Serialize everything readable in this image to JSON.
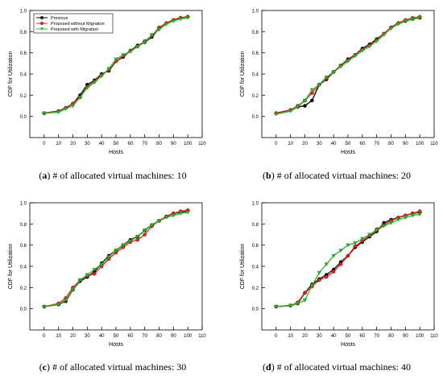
{
  "chart_data": [
    {
      "type": "scatter",
      "panel": "a",
      "caption_letter": "a",
      "caption_text": " # of allocated virtual machines: 10",
      "xlabel": "Hosts",
      "ylabel": "CDF for Utilization",
      "xlim": [
        -10,
        110
      ],
      "ylim": [
        -0.2,
        1.0
      ],
      "xticks": [
        0,
        10,
        20,
        30,
        40,
        50,
        60,
        70,
        80,
        90,
        100,
        110
      ],
      "yticks": [
        0.0,
        0.2,
        0.4,
        0.6,
        0.8,
        1.0
      ],
      "legend": {
        "placement": "top-left",
        "entries": [
          "Previous",
          "Proposed without Migration",
          "Proposed with Migration"
        ]
      },
      "series": [
        {
          "name": "Previous",
          "x": [
            0,
            10,
            15,
            20,
            25,
            30,
            35,
            40,
            45,
            50,
            55,
            60,
            65,
            70,
            75,
            80,
            85,
            90,
            95,
            100
          ],
          "values": [
            0.03,
            0.05,
            0.08,
            0.12,
            0.2,
            0.3,
            0.34,
            0.4,
            0.43,
            0.52,
            0.56,
            0.62,
            0.67,
            0.7,
            0.75,
            0.83,
            0.88,
            0.91,
            0.93,
            0.94
          ]
        },
        {
          "name": "Proposed without Migration",
          "x": [
            0,
            10,
            15,
            20,
            25,
            30,
            35,
            40,
            45,
            50,
            55,
            60,
            65,
            70,
            75,
            80,
            85,
            90,
            95,
            100
          ],
          "values": [
            0.03,
            0.05,
            0.08,
            0.12,
            0.18,
            0.28,
            0.33,
            0.39,
            0.44,
            0.52,
            0.57,
            0.62,
            0.66,
            0.71,
            0.76,
            0.84,
            0.88,
            0.91,
            0.93,
            0.94
          ]
        },
        {
          "name": "Proposed with Migration",
          "x": [
            0,
            10,
            15,
            20,
            25,
            30,
            35,
            40,
            45,
            50,
            55,
            60,
            65,
            70,
            75,
            80,
            85,
            90,
            95,
            100
          ],
          "values": [
            0.03,
            0.04,
            0.07,
            0.1,
            0.18,
            0.27,
            0.32,
            0.38,
            0.45,
            0.54,
            0.58,
            0.61,
            0.66,
            0.7,
            0.77,
            0.82,
            0.87,
            0.9,
            0.92,
            0.93
          ]
        }
      ]
    },
    {
      "type": "scatter",
      "panel": "b",
      "caption_letter": "b",
      "caption_text": " # of allocated virtual machines: 20",
      "xlabel": "Hosts",
      "ylabel": "CDF for Utilization",
      "xlim": [
        -10,
        110
      ],
      "ylim": [
        -0.2,
        1.0
      ],
      "xticks": [
        0,
        10,
        20,
        30,
        40,
        50,
        60,
        70,
        80,
        90,
        100,
        110
      ],
      "yticks": [
        0.0,
        0.2,
        0.4,
        0.6,
        0.8,
        1.0
      ],
      "series": [
        {
          "name": "Previous",
          "x": [
            0,
            10,
            15,
            20,
            25,
            30,
            35,
            40,
            45,
            50,
            55,
            60,
            65,
            70,
            75,
            80,
            85,
            90,
            95,
            100
          ],
          "values": [
            0.03,
            0.06,
            0.09,
            0.1,
            0.15,
            0.3,
            0.35,
            0.42,
            0.48,
            0.54,
            0.58,
            0.64,
            0.68,
            0.73,
            0.78,
            0.84,
            0.88,
            0.9,
            0.92,
            0.93
          ]
        },
        {
          "name": "Proposed without Migration",
          "x": [
            0,
            10,
            15,
            20,
            25,
            30,
            35,
            40,
            45,
            50,
            55,
            60,
            65,
            70,
            75,
            80,
            85,
            90,
            95,
            100
          ],
          "values": [
            0.03,
            0.06,
            0.1,
            0.15,
            0.22,
            0.3,
            0.36,
            0.42,
            0.48,
            0.53,
            0.58,
            0.63,
            0.67,
            0.72,
            0.78,
            0.84,
            0.88,
            0.91,
            0.93,
            0.94
          ]
        },
        {
          "name": "Proposed with Migration",
          "x": [
            0,
            10,
            15,
            20,
            25,
            30,
            35,
            40,
            45,
            50,
            55,
            60,
            65,
            70,
            75,
            80,
            85,
            90,
            95,
            100
          ],
          "values": [
            0.02,
            0.05,
            0.09,
            0.15,
            0.25,
            0.3,
            0.37,
            0.42,
            0.47,
            0.52,
            0.57,
            0.62,
            0.66,
            0.71,
            0.77,
            0.83,
            0.87,
            0.9,
            0.92,
            0.93
          ]
        }
      ]
    },
    {
      "type": "scatter",
      "panel": "c",
      "caption_letter": "c",
      "caption_text": " # of allocated virtual machines: 30",
      "xlabel": "Hosts",
      "ylabel": "CDF for Utilization",
      "xlim": [
        -10,
        110
      ],
      "ylim": [
        -0.2,
        1.0
      ],
      "xticks": [
        0,
        10,
        20,
        30,
        40,
        50,
        60,
        70,
        80,
        90,
        100,
        110
      ],
      "yticks": [
        0.0,
        0.2,
        0.4,
        0.6,
        0.8,
        1.0
      ],
      "series": [
        {
          "name": "Previous",
          "x": [
            0,
            10,
            15,
            20,
            25,
            30,
            35,
            40,
            45,
            50,
            55,
            60,
            65,
            70,
            75,
            80,
            85,
            90,
            95,
            100
          ],
          "values": [
            0.02,
            0.04,
            0.07,
            0.18,
            0.26,
            0.3,
            0.35,
            0.43,
            0.5,
            0.55,
            0.6,
            0.65,
            0.68,
            0.74,
            0.79,
            0.83,
            0.87,
            0.9,
            0.91,
            0.92
          ]
        },
        {
          "name": "Proposed without Migration",
          "x": [
            0,
            10,
            15,
            20,
            25,
            30,
            35,
            40,
            45,
            50,
            55,
            60,
            65,
            70,
            75,
            80,
            85,
            90,
            95,
            100
          ],
          "values": [
            0.02,
            0.05,
            0.1,
            0.2,
            0.27,
            0.31,
            0.33,
            0.4,
            0.47,
            0.53,
            0.58,
            0.63,
            0.65,
            0.7,
            0.78,
            0.83,
            0.87,
            0.9,
            0.92,
            0.93
          ]
        },
        {
          "name": "Proposed with Migration",
          "x": [
            0,
            10,
            15,
            20,
            25,
            30,
            35,
            40,
            45,
            50,
            55,
            60,
            65,
            70,
            75,
            80,
            85,
            90,
            95,
            100
          ],
          "values": [
            0.02,
            0.04,
            0.08,
            0.18,
            0.27,
            0.32,
            0.37,
            0.42,
            0.49,
            0.55,
            0.6,
            0.64,
            0.68,
            0.74,
            0.79,
            0.83,
            0.86,
            0.88,
            0.9,
            0.91
          ]
        }
      ]
    },
    {
      "type": "scatter",
      "panel": "d",
      "caption_letter": "d",
      "caption_text": " # of allocated virtual machines: 40",
      "xlabel": "Hosts",
      "ylabel": "CDF for Utilization",
      "xlim": [
        -10,
        110
      ],
      "ylim": [
        -0.2,
        1.0
      ],
      "xticks": [
        0,
        10,
        20,
        30,
        40,
        50,
        60,
        70,
        80,
        90,
        100,
        110
      ],
      "yticks": [
        0.0,
        0.2,
        0.4,
        0.6,
        0.8,
        1.0
      ],
      "series": [
        {
          "name": "Previous",
          "x": [
            0,
            10,
            15,
            20,
            25,
            30,
            35,
            40,
            45,
            50,
            55,
            60,
            65,
            70,
            75,
            80,
            85,
            90,
            95,
            100
          ],
          "values": [
            0.02,
            0.03,
            0.05,
            0.15,
            0.23,
            0.28,
            0.32,
            0.37,
            0.44,
            0.5,
            0.58,
            0.63,
            0.68,
            0.73,
            0.81,
            0.84,
            0.86,
            0.88,
            0.9,
            0.91
          ]
        },
        {
          "name": "Proposed without Migration",
          "x": [
            0,
            10,
            15,
            20,
            25,
            30,
            35,
            40,
            45,
            50,
            55,
            60,
            65,
            70,
            75,
            80,
            85,
            90,
            95,
            100
          ],
          "values": [
            0.02,
            0.03,
            0.06,
            0.15,
            0.21,
            0.27,
            0.3,
            0.35,
            0.42,
            0.5,
            0.59,
            0.64,
            0.69,
            0.75,
            0.79,
            0.83,
            0.86,
            0.88,
            0.9,
            0.92
          ]
        },
        {
          "name": "Proposed with Migration",
          "x": [
            0,
            10,
            15,
            20,
            25,
            30,
            35,
            40,
            45,
            50,
            55,
            60,
            65,
            70,
            75,
            80,
            85,
            90,
            95,
            100
          ],
          "values": [
            0.02,
            0.03,
            0.05,
            0.08,
            0.22,
            0.34,
            0.42,
            0.5,
            0.55,
            0.6,
            0.62,
            0.66,
            0.7,
            0.74,
            0.78,
            0.81,
            0.84,
            0.86,
            0.88,
            0.89
          ]
        }
      ]
    }
  ],
  "series_colors": [
    "#000000",
    "#e8231e",
    "#2db52d"
  ],
  "series_markers": [
    "circle",
    "circle",
    "triangle-down"
  ]
}
